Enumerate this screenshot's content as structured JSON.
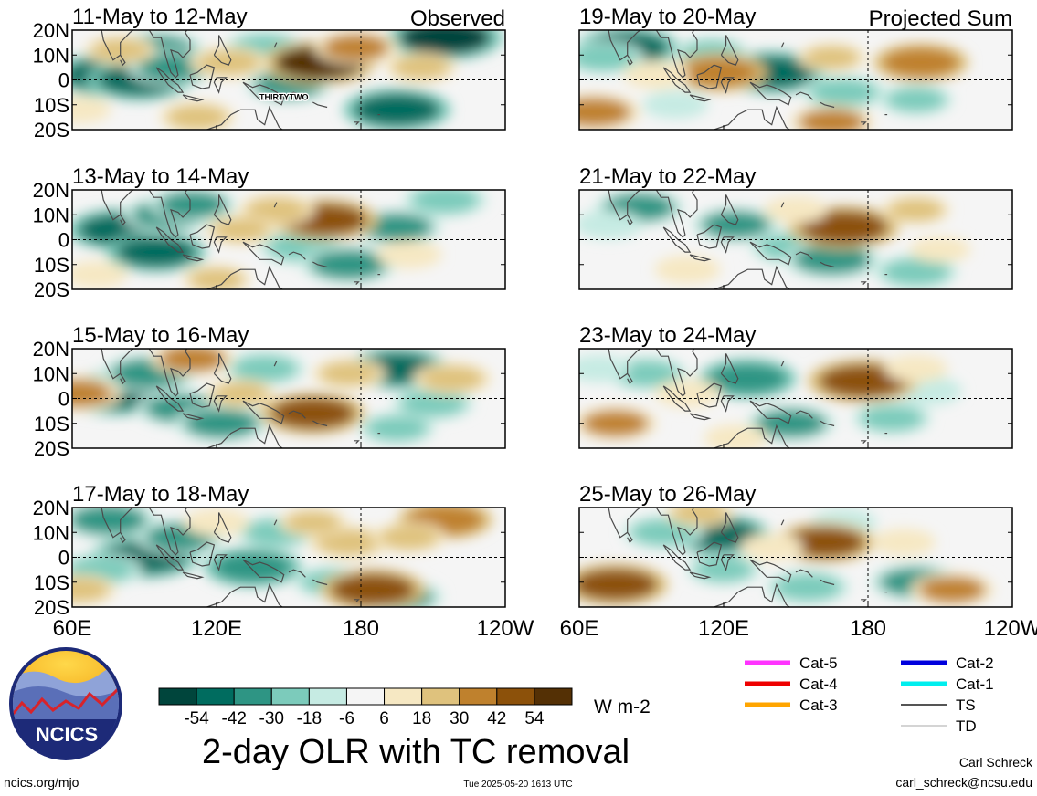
{
  "chart_data": [
    {
      "type": "heatmap",
      "group": "observed",
      "title": "11-May to 12-May",
      "header": "Observed",
      "annotations": [
        {
          "text": "THIRTYTWO",
          "lon": 148,
          "lat": -7
        }
      ],
      "blobs": [
        {
          "lon": 75,
          "lat": 2,
          "v": -52
        },
        {
          "lon": 88,
          "lat": 0,
          "v": -48
        },
        {
          "lon": 95,
          "lat": 12,
          "v": -40
        },
        {
          "lon": 102,
          "lat": 5,
          "v": -36
        },
        {
          "lon": 140,
          "lat": 13,
          "v": -28
        },
        {
          "lon": 150,
          "lat": -2,
          "v": -32
        },
        {
          "lon": 195,
          "lat": -12,
          "v": -50
        },
        {
          "lon": 215,
          "lat": 17,
          "v": -56
        },
        {
          "lon": 163,
          "lat": 7,
          "v": 54
        },
        {
          "lon": 178,
          "lat": 13,
          "v": 30
        },
        {
          "lon": 125,
          "lat": 7,
          "v": 26
        },
        {
          "lon": 80,
          "lat": 12,
          "v": 20
        },
        {
          "lon": 112,
          "lat": -15,
          "v": 24
        },
        {
          "lon": 205,
          "lat": 5,
          "v": 20
        },
        {
          "lon": 63,
          "lat": -12,
          "v": 14
        }
      ]
    },
    {
      "type": "heatmap",
      "group": "observed",
      "title": "13-May to 14-May",
      "blobs": [
        {
          "lon": 80,
          "lat": 4,
          "v": -48
        },
        {
          "lon": 95,
          "lat": -5,
          "v": -44
        },
        {
          "lon": 100,
          "lat": 10,
          "v": -36
        },
        {
          "lon": 110,
          "lat": 14,
          "v": -32
        },
        {
          "lon": 155,
          "lat": -3,
          "v": -30
        },
        {
          "lon": 175,
          "lat": -10,
          "v": -40
        },
        {
          "lon": 195,
          "lat": 5,
          "v": -34
        },
        {
          "lon": 215,
          "lat": 16,
          "v": -30
        },
        {
          "lon": 165,
          "lat": 8,
          "v": 48
        },
        {
          "lon": 145,
          "lat": 12,
          "v": 24
        },
        {
          "lon": 130,
          "lat": 4,
          "v": 20
        },
        {
          "lon": 200,
          "lat": -6,
          "v": 16
        },
        {
          "lon": 70,
          "lat": -14,
          "v": 14
        },
        {
          "lon": 120,
          "lat": -16,
          "v": 18
        }
      ]
    },
    {
      "type": "heatmap",
      "group": "observed",
      "title": "15-May to 16-May",
      "blobs": [
        {
          "lon": 78,
          "lat": 2,
          "v": -52
        },
        {
          "lon": 92,
          "lat": 10,
          "v": -40
        },
        {
          "lon": 105,
          "lat": -4,
          "v": -34
        },
        {
          "lon": 122,
          "lat": -10,
          "v": -38
        },
        {
          "lon": 140,
          "lat": 12,
          "v": -28
        },
        {
          "lon": 195,
          "lat": 12,
          "v": -46
        },
        {
          "lon": 210,
          "lat": -2,
          "v": -28
        },
        {
          "lon": 195,
          "lat": -12,
          "v": -24
        },
        {
          "lon": 160,
          "lat": -6,
          "v": 48
        },
        {
          "lon": 62,
          "lat": 2,
          "v": 34
        },
        {
          "lon": 175,
          "lat": 10,
          "v": 22
        },
        {
          "lon": 130,
          "lat": 2,
          "v": 18
        },
        {
          "lon": 218,
          "lat": 8,
          "v": 26
        },
        {
          "lon": 110,
          "lat": 16,
          "v": 30
        }
      ]
    },
    {
      "type": "heatmap",
      "group": "observed",
      "title": "17-May to 18-May",
      "blobs": [
        {
          "lon": 90,
          "lat": 0,
          "v": -50
        },
        {
          "lon": 75,
          "lat": 15,
          "v": -40
        },
        {
          "lon": 105,
          "lat": 8,
          "v": -34
        },
        {
          "lon": 135,
          "lat": -4,
          "v": -42
        },
        {
          "lon": 145,
          "lat": 10,
          "v": -28
        },
        {
          "lon": 168,
          "lat": -10,
          "v": -24
        },
        {
          "lon": 195,
          "lat": -16,
          "v": -36
        },
        {
          "lon": 72,
          "lat": -5,
          "v": -28
        },
        {
          "lon": 185,
          "lat": -13,
          "v": 48
        },
        {
          "lon": 215,
          "lat": 15,
          "v": 40
        },
        {
          "lon": 175,
          "lat": 6,
          "v": 28
        },
        {
          "lon": 200,
          "lat": 8,
          "v": 22
        },
        {
          "lon": 160,
          "lat": 14,
          "v": 18
        },
        {
          "lon": 120,
          "lat": 14,
          "v": 16
        },
        {
          "lon": 63,
          "lat": -13,
          "v": 22
        }
      ]
    },
    {
      "type": "heatmap",
      "group": "projected",
      "title": "19-May to 20-May",
      "header": "Projected Sum",
      "blobs": [
        {
          "lon": 80,
          "lat": 13,
          "v": -46
        },
        {
          "lon": 140,
          "lat": 3,
          "v": -50
        },
        {
          "lon": 70,
          "lat": 9,
          "v": -28
        },
        {
          "lon": 115,
          "lat": 11,
          "v": -22
        },
        {
          "lon": 170,
          "lat": -5,
          "v": -30
        },
        {
          "lon": 200,
          "lat": -8,
          "v": -22
        },
        {
          "lon": 100,
          "lat": -10,
          "v": -16
        },
        {
          "lon": 118,
          "lat": 3,
          "v": 40
        },
        {
          "lon": 202,
          "lat": 7,
          "v": 40
        },
        {
          "lon": 66,
          "lat": -13,
          "v": 38
        },
        {
          "lon": 165,
          "lat": -17,
          "v": 30
        },
        {
          "lon": 165,
          "lat": 9,
          "v": 18
        },
        {
          "lon": 92,
          "lat": 2,
          "v": 16
        }
      ]
    },
    {
      "type": "heatmap",
      "group": "projected",
      "title": "21-May to 22-May",
      "blobs": [
        {
          "lon": 85,
          "lat": 13,
          "v": -34
        },
        {
          "lon": 125,
          "lat": 6,
          "v": -32
        },
        {
          "lon": 148,
          "lat": -3,
          "v": -28
        },
        {
          "lon": 165,
          "lat": -8,
          "v": -40
        },
        {
          "lon": 200,
          "lat": -13,
          "v": -30
        },
        {
          "lon": 72,
          "lat": 6,
          "v": -18
        },
        {
          "lon": 170,
          "lat": 5,
          "v": 52
        },
        {
          "lon": 200,
          "lat": 12,
          "v": 18
        },
        {
          "lon": 105,
          "lat": -12,
          "v": 16
        },
        {
          "lon": 150,
          "lat": 12,
          "v": 14
        },
        {
          "lon": 210,
          "lat": -4,
          "v": 12
        }
      ]
    },
    {
      "type": "heatmap",
      "group": "projected",
      "title": "23-May to 24-May",
      "blobs": [
        {
          "lon": 130,
          "lat": 8,
          "v": -42
        },
        {
          "lon": 88,
          "lat": 10,
          "v": -28
        },
        {
          "lon": 148,
          "lat": -10,
          "v": -34
        },
        {
          "lon": 190,
          "lat": -8,
          "v": -26
        },
        {
          "lon": 205,
          "lat": 3,
          "v": -18
        },
        {
          "lon": 68,
          "lat": 12,
          "v": -14
        },
        {
          "lon": 178,
          "lat": 7,
          "v": 52
        },
        {
          "lon": 75,
          "lat": -10,
          "v": 30
        },
        {
          "lon": 105,
          "lat": 2,
          "v": 16
        },
        {
          "lon": 200,
          "lat": 12,
          "v": 14
        },
        {
          "lon": 125,
          "lat": -16,
          "v": 14
        }
      ]
    },
    {
      "type": "heatmap",
      "group": "projected",
      "title": "25-May to 26-May",
      "blobs": [
        {
          "lon": 118,
          "lat": 9,
          "v": -46
        },
        {
          "lon": 95,
          "lat": 10,
          "v": -28
        },
        {
          "lon": 155,
          "lat": -12,
          "v": -30
        },
        {
          "lon": 200,
          "lat": -10,
          "v": -36
        },
        {
          "lon": 120,
          "lat": -5,
          "v": -22
        },
        {
          "lon": 170,
          "lat": 14,
          "v": -16
        },
        {
          "lon": 75,
          "lat": -11,
          "v": 48
        },
        {
          "lon": 162,
          "lat": 6,
          "v": 44
        },
        {
          "lon": 215,
          "lat": -13,
          "v": 30
        },
        {
          "lon": 110,
          "lat": 18,
          "v": 18
        },
        {
          "lon": 195,
          "lat": 6,
          "v": 14
        },
        {
          "lon": 140,
          "lat": 4,
          "v": 14
        }
      ]
    }
  ],
  "axes": {
    "lon_range": [
      60,
      240
    ],
    "lat_range": [
      -20,
      20
    ],
    "lon_ticks": [
      {
        "lon": 60,
        "label": "60E"
      },
      {
        "lon": 120,
        "label": "120E"
      },
      {
        "lon": 180,
        "label": "180"
      },
      {
        "lon": 240,
        "label": "120W"
      }
    ],
    "lat_ticks": [
      {
        "lat": 20,
        "label": "20N"
      },
      {
        "lat": 10,
        "label": "10N"
      },
      {
        "lat": 0,
        "label": "0"
      },
      {
        "lat": -10,
        "label": "10S"
      },
      {
        "lat": -20,
        "label": "20S"
      }
    ]
  },
  "colorbar": {
    "levels": [
      -54,
      -42,
      -30,
      -18,
      -6,
      6,
      18,
      30,
      42,
      54
    ],
    "tick_labels": [
      "-54",
      "-42",
      "-30",
      "-18",
      "-6",
      "6",
      "18",
      "30",
      "42",
      "54"
    ],
    "colors": [
      "#00453c",
      "#006c5f",
      "#2e9584",
      "#7ccbbb",
      "#c6ebe3",
      "#f5f5f5",
      "#f6e8c3",
      "#dfc27d",
      "#bf812d",
      "#8c510a",
      "#543005"
    ],
    "units": "W m-2"
  },
  "title": "2-day OLR with TC removal",
  "legend": [
    {
      "label": "Cat-5",
      "color": "#ff33ff"
    },
    {
      "label": "Cat-4",
      "color": "#ee0000"
    },
    {
      "label": "Cat-3",
      "color": "#ffa500"
    },
    {
      "label": "Cat-2",
      "color": "#0000dd"
    },
    {
      "label": "Cat-1",
      "color": "#00eeee"
    },
    {
      "label": "TS",
      "color": "#555555"
    },
    {
      "label": "TD",
      "color": "#aaaaaa"
    }
  ],
  "logo": {
    "text": "NCICS"
  },
  "footer": {
    "website": "ncics.org/mjo",
    "timestamp": "Tue 2025-05-20 1613 UTC",
    "author": "Carl Schreck",
    "email": "carl_schreck@ncsu.edu"
  }
}
